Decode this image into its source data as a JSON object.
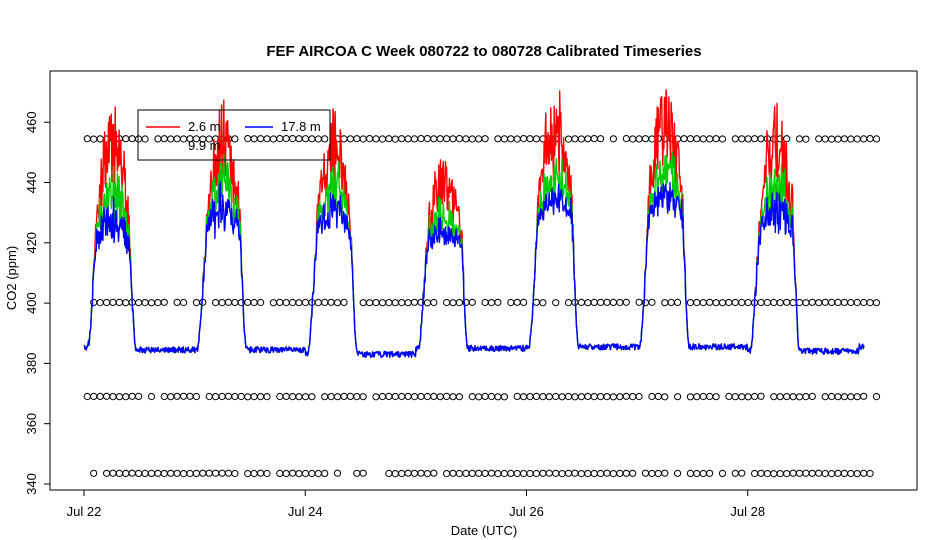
{
  "chart_data": {
    "type": "line",
    "title": "FEF AIRCOA C  Week 080722 to 080728  Calibrated Timeseries",
    "xlabel": "Date (UTC)",
    "ylabel": "CO2 (ppm)",
    "xlim_days": [
      0,
      7.25
    ],
    "ylim": [
      338,
      477
    ],
    "x_ticks": [
      {
        "value": 0,
        "label": "Jul 22"
      },
      {
        "value": 2,
        "label": "Jul 24"
      },
      {
        "value": 4,
        "label": "Jul 26"
      },
      {
        "value": 6,
        "label": "Jul 28"
      }
    ],
    "y_ticks": [
      340,
      360,
      380,
      400,
      420,
      440,
      460
    ],
    "grid": false,
    "legend": {
      "placement": "top-left",
      "entries": [
        {
          "label": "2.6 m",
          "color": "#ff0000"
        },
        {
          "label": "17.8 m",
          "color": "#0000ff"
        },
        {
          "label": "9.9 m",
          "color": "#00cc00"
        }
      ]
    },
    "series": [
      {
        "name": "2.6 m",
        "color": "#ff0000"
      },
      {
        "name": "17.8 m",
        "color": "#0000ff"
      },
      {
        "name": "9.9 m",
        "color": "#00cc00"
      }
    ],
    "daily_profile_ppm": [
      {
        "day": 0,
        "start": 385.5,
        "night": 384.5,
        "day_level": 418,
        "peak_2_6": 466,
        "peak_9_9": 445,
        "peak_17_8": 432
      },
      {
        "day": 1,
        "night": 384.5,
        "day_level": 420,
        "peak_2_6": 463,
        "peak_9_9": 448,
        "peak_17_8": 438
      },
      {
        "day": 2,
        "night": 383,
        "day_level": 422,
        "peak_2_6": 460,
        "peak_9_9": 444,
        "peak_17_8": 434
      },
      {
        "day": 3,
        "night": 385,
        "day_level": 420,
        "peak_2_6": 448,
        "peak_9_9": 432,
        "peak_17_8": 425
      },
      {
        "day": 4,
        "night": 385.5,
        "day_level": 428,
        "peak_2_6": 469,
        "peak_9_9": 448,
        "peak_17_8": 438
      },
      {
        "day": 5,
        "night": 385.5,
        "day_level": 428,
        "peak_2_6": 474,
        "peak_9_9": 450,
        "peak_17_8": 440
      },
      {
        "day": 6,
        "night": 384,
        "day_level": 422,
        "peak_2_6": 463,
        "peak_9_9": 445,
        "peak_17_8": 435
      },
      {
        "day": 7,
        "night": 385.5,
        "end": 392
      }
    ],
    "calibration_points_ppm": [
      454.5,
      400.2,
      369,
      343.5
    ]
  }
}
